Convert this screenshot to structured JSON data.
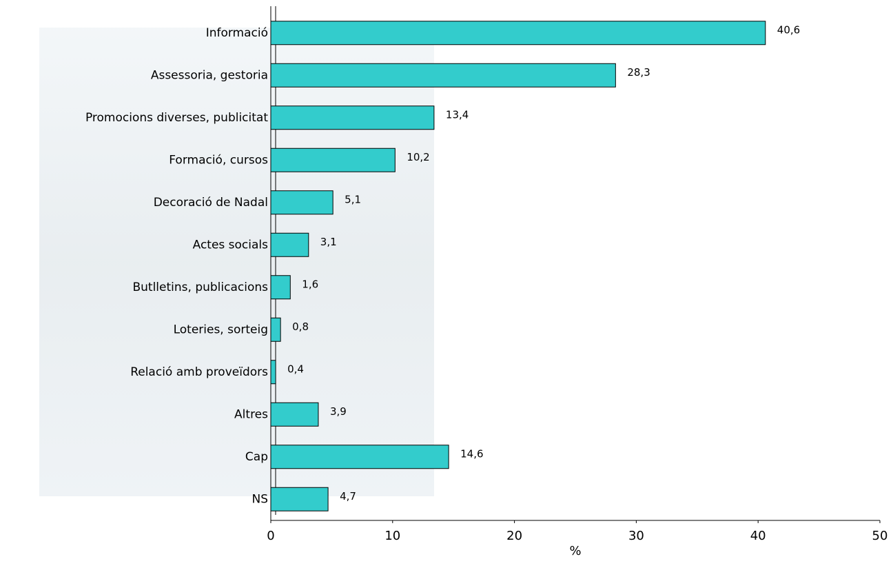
{
  "chart_data": {
    "type": "bar",
    "orientation": "horizontal",
    "x_label": "%",
    "categories": [
      "Informació",
      "Assessoria, gestoria",
      "Promocions diverses, publicitat",
      "Formació, cursos",
      "Decoració de Nadal",
      "Actes socials",
      "Butlletins, publicacions",
      "Loteries, sorteig",
      "Relació amb proveïdors",
      "Altres",
      "Cap",
      "NS"
    ],
    "values": [
      40.6,
      28.3,
      13.4,
      10.2,
      5.1,
      3.1,
      1.6,
      0.8,
      0.4,
      3.9,
      14.6,
      4.7
    ],
    "value_labels": [
      "40,6",
      "28,3",
      "13,4",
      "10,2",
      "5,1",
      "3,1",
      "1,6",
      "0,8",
      "0,4",
      "3,9",
      "14,6",
      "4,7"
    ],
    "color": "#33cccc",
    "xlim": [
      0,
      50
    ],
    "xticks": [
      0,
      10,
      20,
      30,
      40,
      50
    ]
  }
}
